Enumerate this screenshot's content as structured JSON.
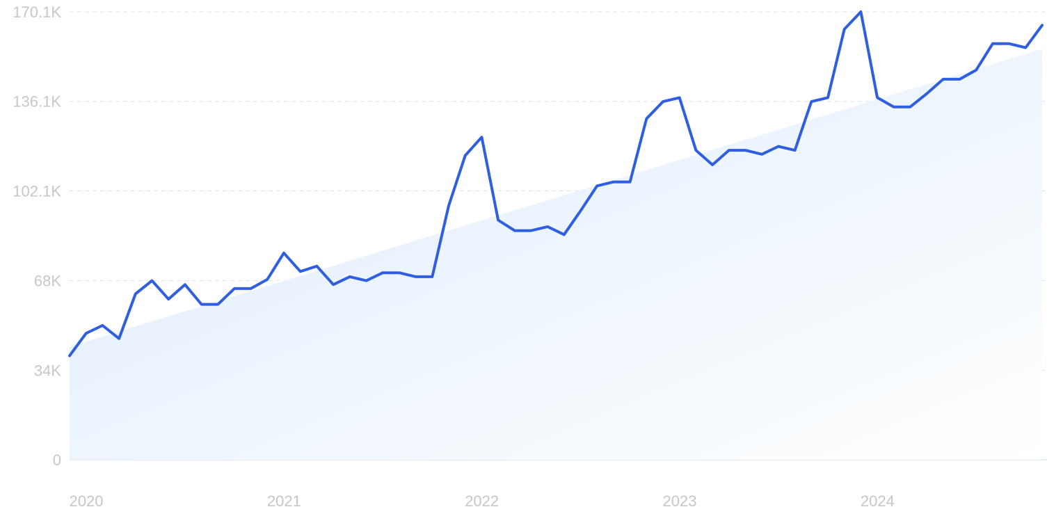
{
  "chart_data": {
    "type": "line",
    "title": "",
    "xlabel": "",
    "ylabel": "",
    "x_tick_labels": [
      "2020",
      "2021",
      "2022",
      "2023",
      "2024"
    ],
    "y_tick_labels": [
      "0",
      "34K",
      "68K",
      "102.1K",
      "136.1K",
      "170.1K"
    ],
    "y_ticks": [
      0,
      34000,
      68000,
      102100,
      136100,
      170100
    ],
    "ylim": [
      0,
      170100
    ],
    "xlim": [
      "2020-01",
      "2024-12"
    ],
    "grid": true,
    "trend_area": {
      "start": 43000,
      "end": 156000
    },
    "series": [
      {
        "x": [
          "2020-01",
          "2020-02",
          "2020-03",
          "2020-04",
          "2020-05",
          "2020-06",
          "2020-07",
          "2020-08",
          "2020-09",
          "2020-10",
          "2020-11",
          "2020-12",
          "2021-01",
          "2021-02",
          "2021-03",
          "2021-04",
          "2021-05",
          "2021-06",
          "2021-07",
          "2021-08",
          "2021-09",
          "2021-10",
          "2021-11",
          "2021-12",
          "2022-01",
          "2022-02",
          "2022-03",
          "2022-04",
          "2022-05",
          "2022-06",
          "2022-07",
          "2022-08",
          "2022-09",
          "2022-10",
          "2022-11",
          "2022-12",
          "2023-01",
          "2023-02",
          "2023-03",
          "2023-04",
          "2023-05",
          "2023-06",
          "2023-07",
          "2023-08",
          "2023-09",
          "2023-10",
          "2023-11",
          "2023-12",
          "2024-01",
          "2024-02",
          "2024-03",
          "2024-04",
          "2024-05",
          "2024-06",
          "2024-07",
          "2024-08",
          "2024-09",
          "2024-10",
          "2024-11",
          "2024-12"
        ],
        "values": [
          39500,
          48000,
          51000,
          46000,
          63000,
          68000,
          61000,
          66500,
          59000,
          59000,
          65000,
          65000,
          68500,
          78500,
          71500,
          73500,
          66500,
          69500,
          68000,
          71000,
          71000,
          69500,
          69500,
          96500,
          115500,
          122500,
          91000,
          87000,
          87000,
          88500,
          85500,
          94500,
          104000,
          105500,
          105500,
          129500,
          136000,
          137500,
          117500,
          112000,
          117500,
          117500,
          116000,
          119000,
          117500,
          136000,
          137500,
          163500,
          170100,
          137500,
          134000,
          134000,
          139000,
          144500,
          144500,
          148000,
          158000,
          158000,
          156500,
          165000
        ]
      }
    ]
  }
}
